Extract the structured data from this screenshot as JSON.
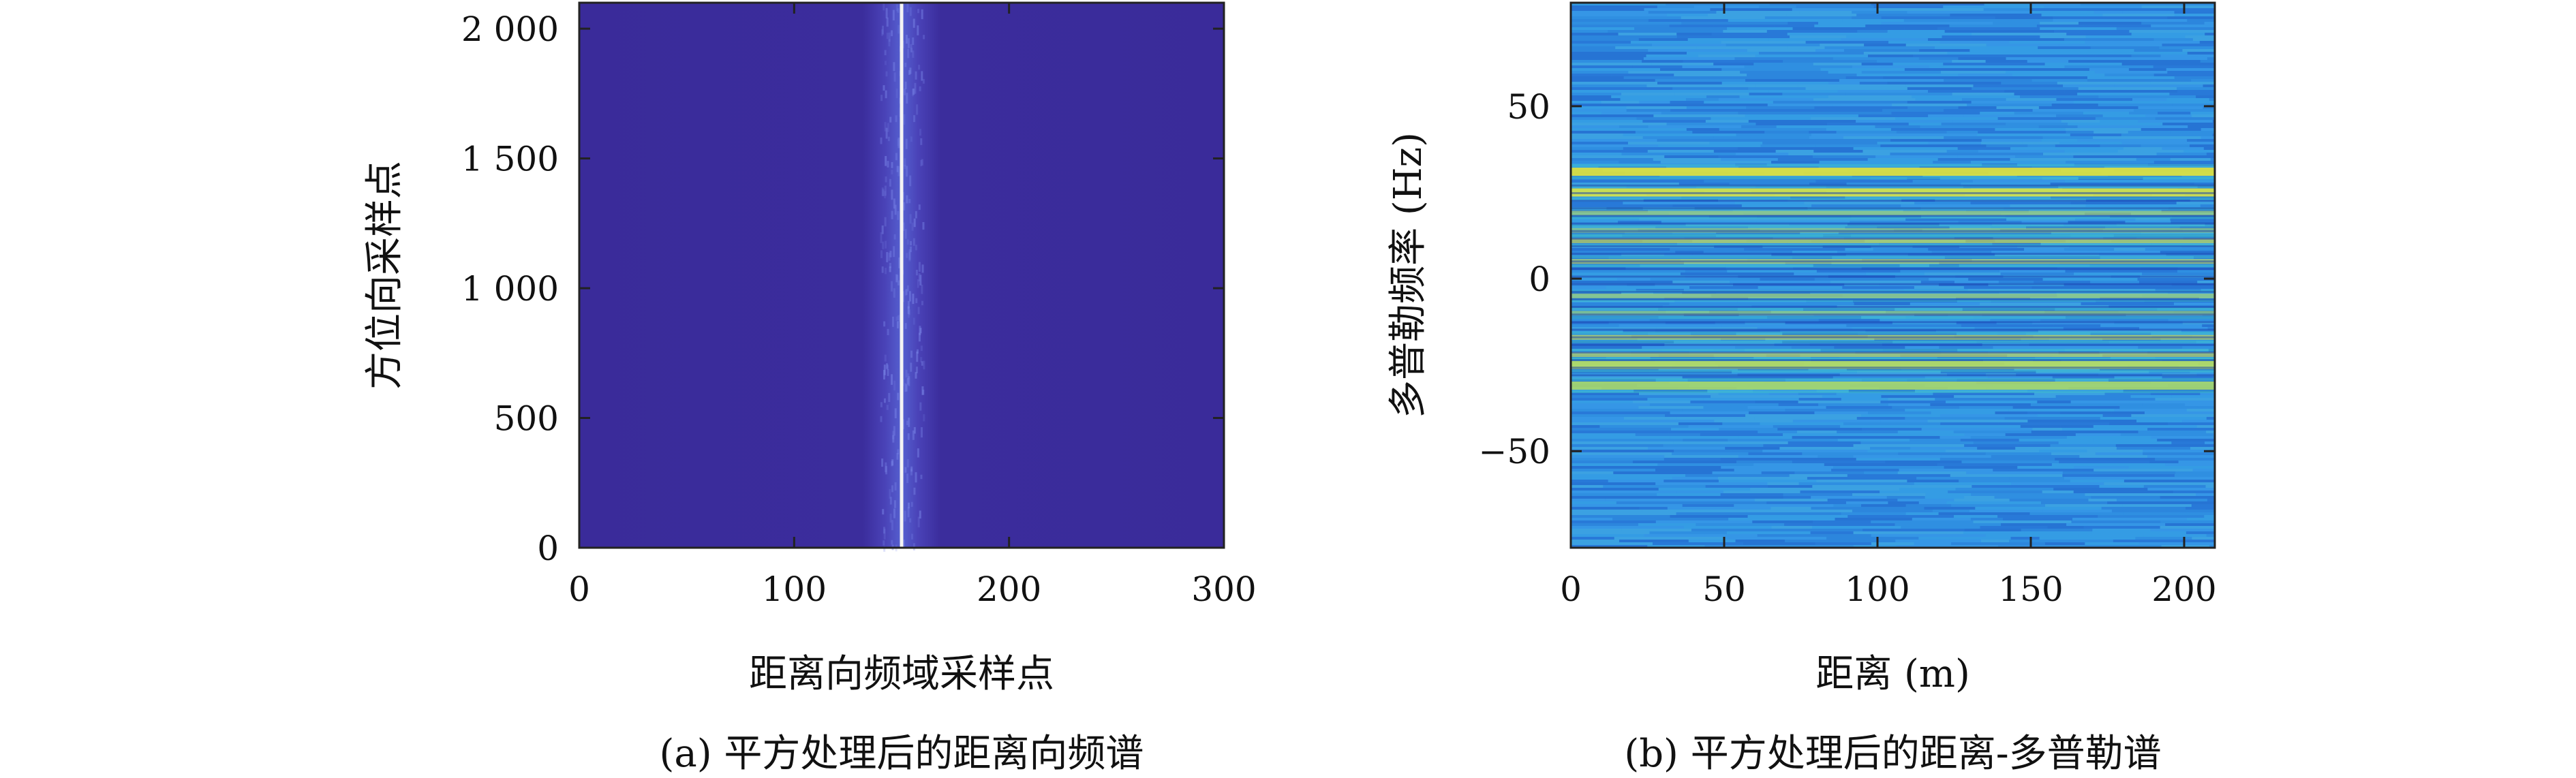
{
  "chart_data": [
    {
      "type": "heatmap",
      "panel": "a",
      "caption": "(a) 平方处理后的距离向频谱",
      "xlabel": "距离向频域采样点",
      "ylabel": "方位向采样点",
      "xlim": [
        0,
        300
      ],
      "ylim": [
        0,
        2100
      ],
      "xticks": [
        0,
        100,
        200,
        300
      ],
      "xtick_labels": [
        "0",
        "100",
        "200",
        "300"
      ],
      "yticks": [
        0,
        500,
        1000,
        1500,
        2000
      ],
      "ytick_labels": [
        "0",
        "500",
        "1 000",
        "1 500",
        "2 000"
      ],
      "grid": false,
      "background_color": "#3b2a9a",
      "peak": {
        "x": 150,
        "color": "#f4f4f4"
      },
      "spread": [
        140,
        160
      ]
    },
    {
      "type": "heatmap",
      "panel": "b",
      "caption": "(b) 平方处理后的距离-多普勒谱",
      "xlabel": "距离 (m)",
      "ylabel": "多普勒频率 (Hz)",
      "xlim": [
        0,
        210
      ],
      "ylim": [
        -78,
        80
      ],
      "xticks": [
        0,
        50,
        100,
        150,
        200
      ],
      "xtick_labels": [
        "0",
        "50",
        "100",
        "150",
        "200"
      ],
      "yticks": [
        -50,
        0,
        50
      ],
      "ytick_labels": [
        "−50",
        "0",
        "50"
      ],
      "grid": false,
      "background_color": "#2f8ee3",
      "bright_bands_hz": [
        31,
        25,
        19,
        14,
        11,
        5,
        -5,
        -10,
        -17,
        -22,
        -25,
        -31
      ]
    }
  ]
}
